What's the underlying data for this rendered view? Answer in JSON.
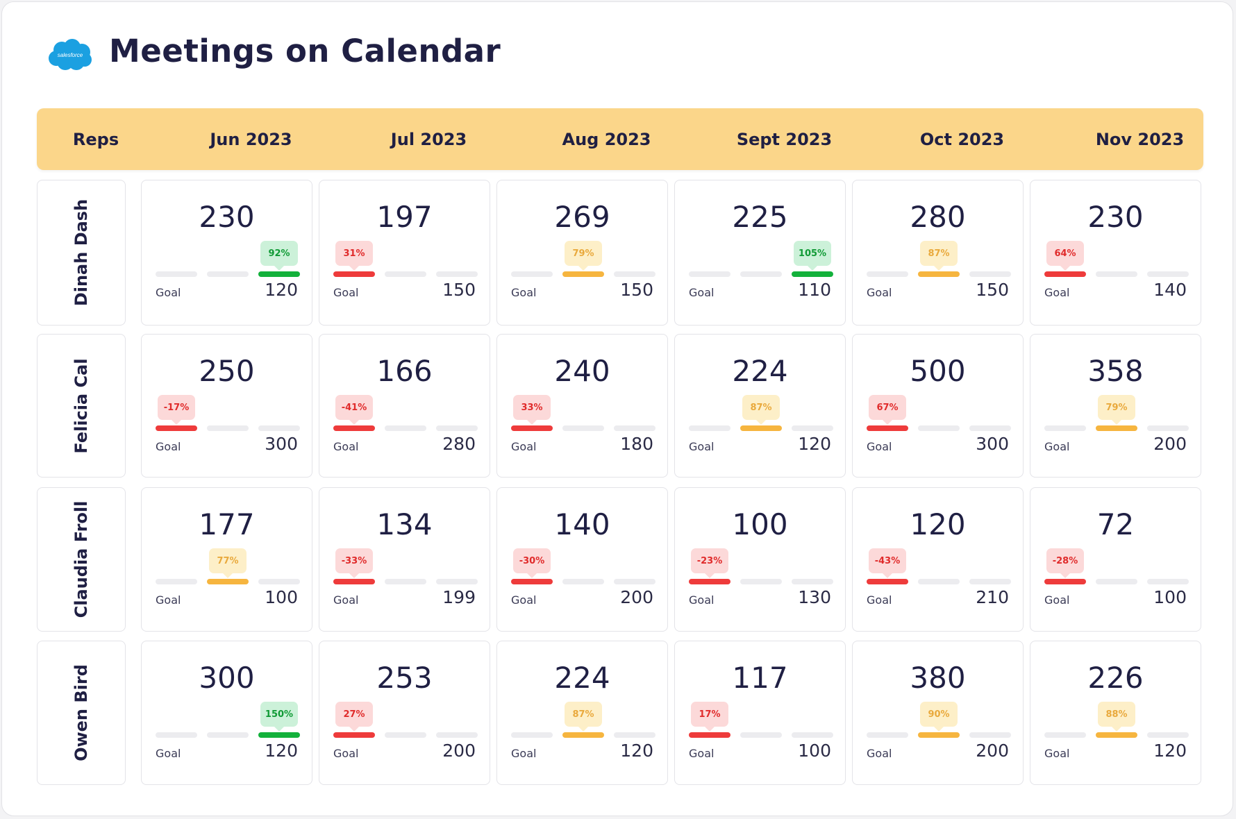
{
  "title": "Meetings on Calendar",
  "logo": {
    "name": "salesforce-logo",
    "text": "salesforce",
    "color": "#1ba0e1"
  },
  "header": {
    "reps_label": "Reps",
    "months": [
      "Jun 2023",
      "Jul 2023",
      "Aug 2023",
      "Sept 2023",
      "Oct 2023",
      "Nov 2023"
    ]
  },
  "goal_label": "Goal",
  "status_colors": {
    "red": "#ee3b3b",
    "amber": "#f6b53f",
    "green": "#13b13b"
  },
  "reps": [
    {
      "name": "Dinah Dash",
      "cells": [
        {
          "value": "230",
          "goal": "120",
          "badge": "92%",
          "status": "green",
          "segment": 3
        },
        {
          "value": "197",
          "goal": "150",
          "badge": "31%",
          "status": "red",
          "segment": 1
        },
        {
          "value": "269",
          "goal": "150",
          "badge": "79%",
          "status": "amber",
          "segment": 2
        },
        {
          "value": "225",
          "goal": "110",
          "badge": "105%",
          "status": "green",
          "segment": 3
        },
        {
          "value": "280",
          "goal": "150",
          "badge": "87%",
          "status": "amber",
          "segment": 2
        },
        {
          "value": "230",
          "goal": "140",
          "badge": "64%",
          "status": "red",
          "segment": 1
        }
      ]
    },
    {
      "name": "Felicia Cal",
      "cells": [
        {
          "value": "250",
          "goal": "300",
          "badge": "-17%",
          "status": "red",
          "segment": 1
        },
        {
          "value": "166",
          "goal": "280",
          "badge": "-41%",
          "status": "red",
          "segment": 1
        },
        {
          "value": "240",
          "goal": "180",
          "badge": "33%",
          "status": "red",
          "segment": 1
        },
        {
          "value": "224",
          "goal": "120",
          "badge": "87%",
          "status": "amber",
          "segment": 2
        },
        {
          "value": "500",
          "goal": "300",
          "badge": "67%",
          "status": "red",
          "segment": 1
        },
        {
          "value": "358",
          "goal": "200",
          "badge": "79%",
          "status": "amber",
          "segment": 2
        }
      ]
    },
    {
      "name": "Claudia Froll",
      "cells": [
        {
          "value": "177",
          "goal": "100",
          "badge": "77%",
          "status": "amber",
          "segment": 2
        },
        {
          "value": "134",
          "goal": "199",
          "badge": "-33%",
          "status": "red",
          "segment": 1
        },
        {
          "value": "140",
          "goal": "200",
          "badge": "-30%",
          "status": "red",
          "segment": 1
        },
        {
          "value": "100",
          "goal": "130",
          "badge": "-23%",
          "status": "red",
          "segment": 1
        },
        {
          "value": "120",
          "goal": "210",
          "badge": "-43%",
          "status": "red",
          "segment": 1
        },
        {
          "value": "72",
          "goal": "100",
          "badge": "-28%",
          "status": "red",
          "segment": 1
        }
      ]
    },
    {
      "name": "Owen Bird",
      "cells": [
        {
          "value": "300",
          "goal": "120",
          "badge": "150%",
          "status": "green",
          "segment": 3
        },
        {
          "value": "253",
          "goal": "200",
          "badge": "27%",
          "status": "red",
          "segment": 1
        },
        {
          "value": "224",
          "goal": "120",
          "badge": "87%",
          "status": "amber",
          "segment": 2
        },
        {
          "value": "117",
          "goal": "100",
          "badge": "17%",
          "status": "red",
          "segment": 1
        },
        {
          "value": "380",
          "goal": "200",
          "badge": "90%",
          "status": "amber",
          "segment": 2
        },
        {
          "value": "226",
          "goal": "120",
          "badge": "88%",
          "status": "amber",
          "segment": 2
        }
      ]
    }
  ]
}
